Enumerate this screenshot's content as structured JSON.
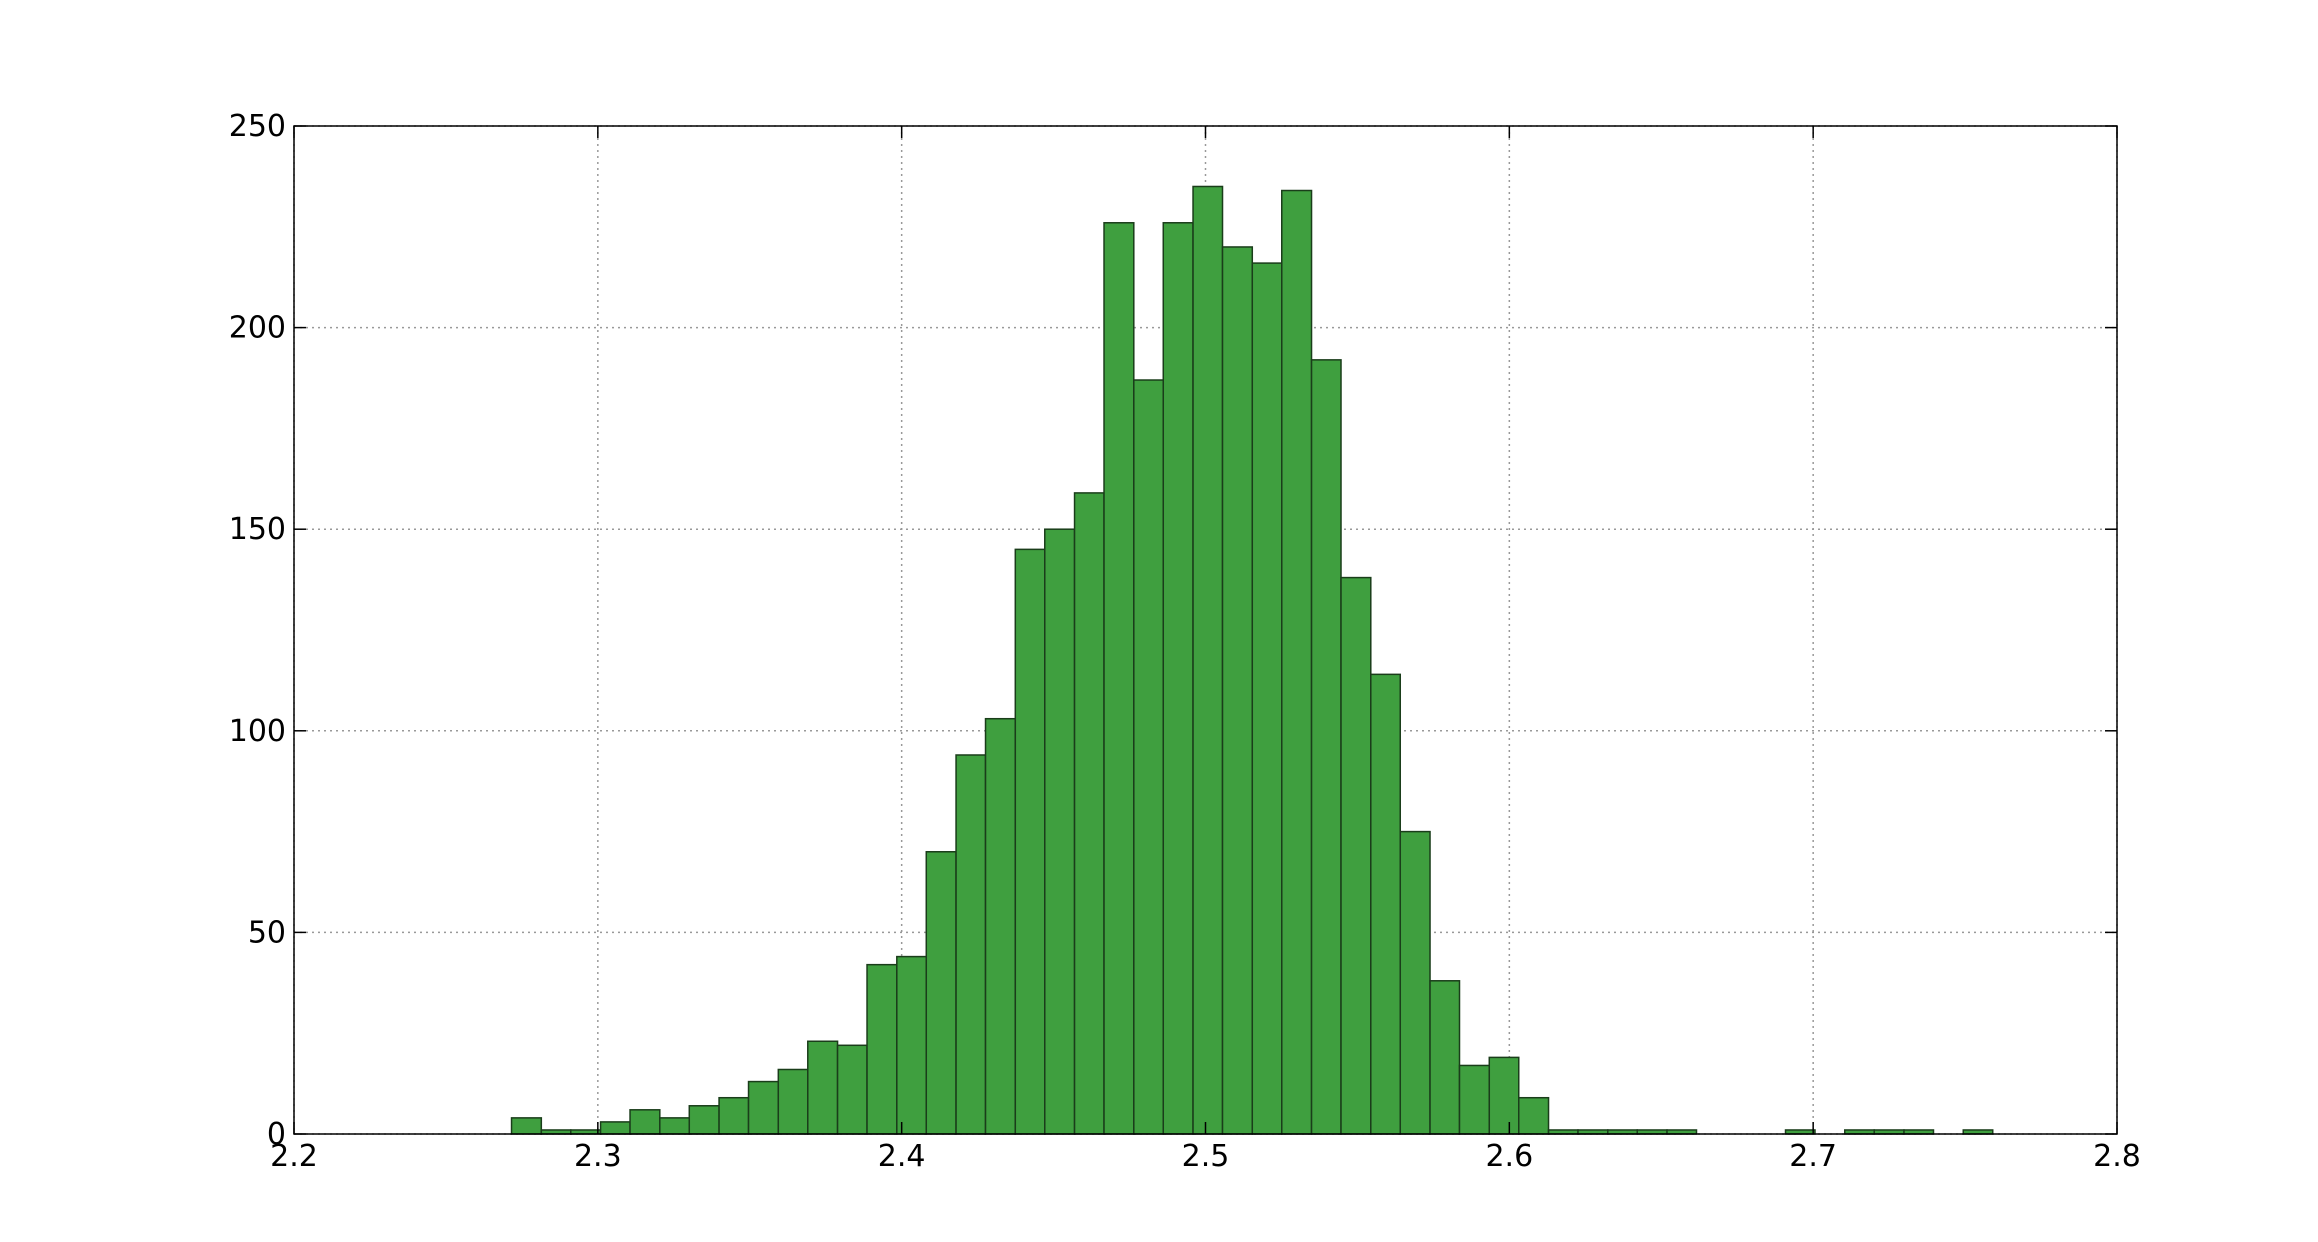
{
  "chart_data": {
    "type": "histogram",
    "bins": [
      2.2716,
      2.2814,
      2.2911,
      2.3009,
      2.3106,
      2.3204,
      2.3301,
      2.3399,
      2.3496,
      2.3594,
      2.3691,
      2.3789,
      2.3886,
      2.3984,
      2.4081,
      2.4179,
      2.4276,
      2.4374,
      2.4471,
      2.4569,
      2.4666,
      2.4764,
      2.4861,
      2.4959,
      2.5056,
      2.5154,
      2.5251,
      2.5349,
      2.5446,
      2.5544,
      2.5641,
      2.5739,
      2.5836,
      2.5934,
      2.6031,
      2.6129,
      2.6226,
      2.6324,
      2.6421,
      2.6519,
      2.6616,
      2.6714,
      2.6811,
      2.6909,
      2.7006,
      2.7104,
      2.7201,
      2.7299,
      2.7396,
      2.7494,
      2.7591
    ],
    "values": [
      4,
      1,
      1,
      3,
      6,
      4,
      7,
      9,
      13,
      16,
      23,
      22,
      42,
      44,
      70,
      94,
      103,
      145,
      150,
      159,
      226,
      187,
      226,
      235,
      220,
      216,
      234,
      192,
      138,
      114,
      75,
      38,
      17,
      19,
      9,
      1,
      1,
      1,
      1,
      1,
      0,
      0,
      0,
      1,
      0,
      1,
      1,
      1,
      0,
      1
    ],
    "color": "#3f9f3f",
    "xlim": [
      2.2,
      2.8
    ],
    "xticks": [
      2.2,
      2.3,
      2.4,
      2.5,
      2.6,
      2.7,
      2.8
    ],
    "ylim": [
      0,
      250
    ],
    "yticks": [
      0,
      50,
      100,
      150,
      200,
      250
    ],
    "grid": true
  }
}
